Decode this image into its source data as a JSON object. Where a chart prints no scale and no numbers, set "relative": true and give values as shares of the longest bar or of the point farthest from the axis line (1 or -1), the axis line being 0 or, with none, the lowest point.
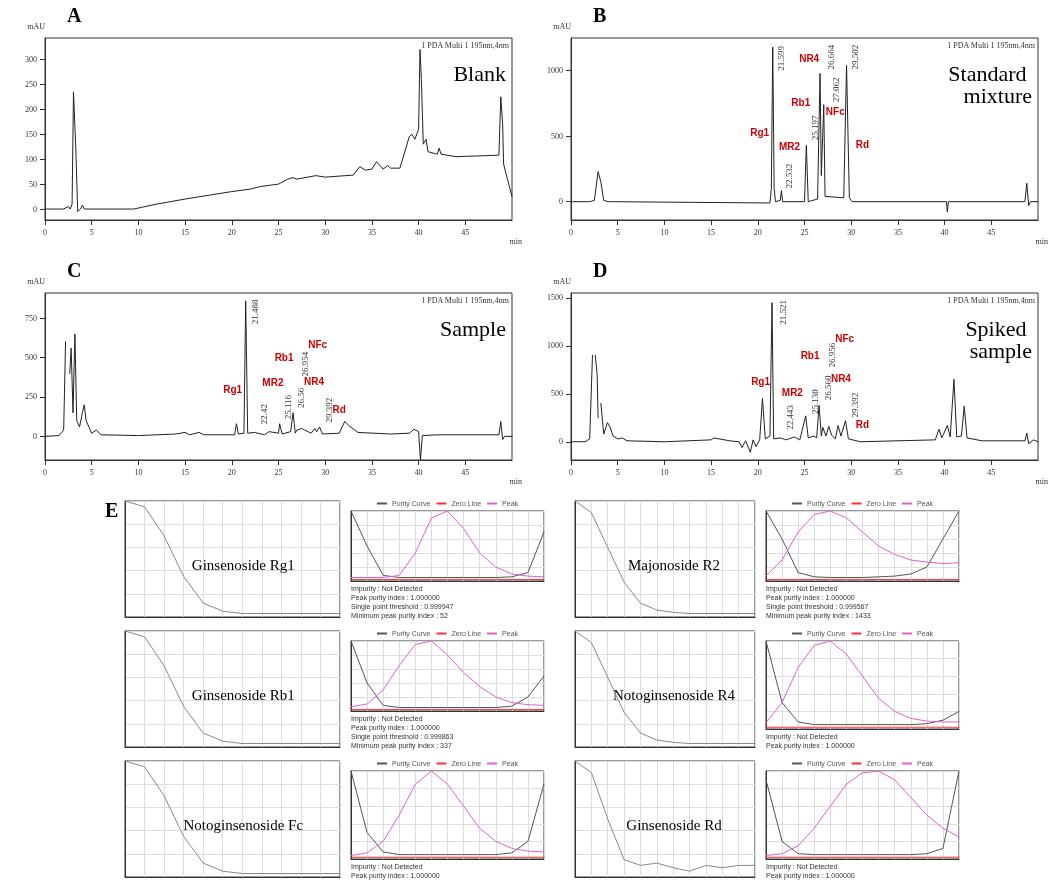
{
  "chart_data": [
    {
      "type": "line",
      "title": "A",
      "xlabel": "min",
      "ylabel": "mAU",
      "grid": false,
      "xlim": [
        0,
        50
      ],
      "xticks": [
        0,
        5,
        10,
        15,
        20,
        25,
        30,
        35,
        40,
        45
      ],
      "ylim": [
        -22,
        343
      ],
      "yticks": [
        0,
        50,
        100,
        150,
        200,
        250,
        300
      ],
      "x": [
        0,
        2,
        2.5,
        2.7,
        2.9,
        3.05,
        3.3,
        3.5,
        3.8,
        4,
        4.2,
        9.5,
        12,
        15,
        20,
        22,
        23,
        25,
        26,
        26.5,
        27,
        29,
        30,
        33,
        33.7,
        34.3,
        35,
        35.5,
        36.2,
        36.7,
        37,
        38,
        39,
        39.3,
        39.6,
        40,
        40.15,
        40.3,
        40.5,
        40.8,
        41,
        42,
        42.2,
        42.4,
        44,
        48.6,
        48.8,
        49,
        49.1,
        50
      ],
      "series": [
        {
          "color": "#222222",
          "values": [
            0,
            0,
            5,
            0,
            10,
            235,
            120,
            -5,
            0,
            8,
            0,
            0,
            10,
            20,
            35,
            40,
            45,
            50,
            60,
            63,
            60,
            67,
            64,
            68,
            85,
            78,
            80,
            95,
            80,
            87,
            82,
            82,
            145,
            150,
            140,
            160,
            320,
            260,
            130,
            140,
            115,
            110,
            122,
            110,
            105,
            108,
            225,
            170,
            90,
            25
          ]
        }
      ],
      "annotations": [
        "1 PDA Multi 1 195nm,4nm",
        "Blank"
      ]
    },
    {
      "type": "line",
      "title": "B",
      "xlabel": "min",
      "ylabel": "mAU",
      "grid": false,
      "xlim": [
        0,
        50
      ],
      "xticks": [
        0,
        5,
        10,
        15,
        20,
        25,
        30,
        35,
        40,
        45
      ],
      "ylim": [
        -140,
        1250
      ],
      "yticks": [
        0,
        500,
        1000
      ],
      "x": [
        0,
        2,
        2.5,
        2.9,
        3.2,
        3.5,
        4,
        21.3,
        21.45,
        21.599,
        21.75,
        21.9,
        22.4,
        22.532,
        22.65,
        25,
        25.197,
        25.4,
        26.4,
        26.664,
        26.8,
        27.062,
        27.2,
        29.2,
        29.502,
        29.8,
        30.1,
        40.2,
        40.3,
        40.4,
        48.6,
        48.8,
        49,
        49.2,
        50
      ],
      "series": [
        {
          "color": "#222222",
          "values": [
            0,
            0,
            10,
            230,
            150,
            10,
            0,
            -10,
            100,
            1180,
            100,
            0,
            10,
            85,
            0,
            0,
            430,
            0,
            20,
            980,
            200,
            740,
            40,
            30,
            1040,
            30,
            0,
            0,
            -80,
            0,
            0,
            140,
            -30,
            0,
            0
          ]
        }
      ],
      "annotations": [
        "1 PDA Multi 1 195nm,4nm",
        "Standard mixture",
        "Rg1",
        "MR2",
        "Rb1",
        "NR4",
        "NFc",
        "Rd",
        "21.599",
        "22.532",
        "25.197",
        "26.664",
        "27.062",
        "29.502"
      ]
    },
    {
      "type": "line",
      "title": "C",
      "xlabel": "min",
      "ylabel": "mAU",
      "grid": false,
      "xlim": [
        0,
        50
      ],
      "xticks": [
        0,
        5,
        10,
        15,
        20,
        25,
        30,
        35,
        40,
        45
      ],
      "ylim": [
        -150,
        910
      ],
      "yticks": [
        0,
        250,
        500,
        750
      ],
      "x": [
        0,
        1.5,
        2,
        2.2,
        2.35,
        2.5,
        2.65,
        2.8,
        3.0,
        3.2,
        3.4,
        3.7,
        4.0,
        4.2,
        4.4,
        5,
        5.5,
        6,
        10,
        14,
        15,
        15.5,
        16.5,
        17,
        20.3,
        20.5,
        20.7,
        21.3,
        21.488,
        21.7,
        22.42,
        23.5,
        24,
        25,
        25.116,
        25.4,
        26.3,
        26.56,
        26.8,
        26.954,
        27.5,
        27.8,
        28.5,
        28.9,
        29.1,
        29.392,
        29.7,
        31.5,
        32.1,
        32.5,
        33.5,
        37,
        39,
        39.5,
        40,
        40.2,
        40.4,
        42,
        48.6,
        48.8,
        49,
        49.2,
        50
      ],
      "series": [
        {
          "color": "#222222",
          "values": [
            0,
            5,
            40,
            600,
            null,
            null,
            400,
            560,
            150,
            650,
            100,
            60,
            150,
            200,
            100,
            20,
            40,
            10,
            5,
            15,
            25,
            10,
            25,
            10,
            10,
            80,
            15,
            20,
            860,
            20,
            25,
            10,
            30,
            20,
            80,
            15,
            30,
            150,
            20,
            40,
            50,
            40,
            20,
            50,
            30,
            60,
            15,
            20,
            95,
            70,
            25,
            15,
            20,
            45,
            30,
            -150,
            5,
            10,
            10,
            95,
            -20,
            0,
            0
          ]
        }
      ],
      "annotations": [
        "1 PDA Multi 1 195nm,4nm",
        "Sample",
        "Rg1",
        "MR2",
        "Rb1",
        "NR4",
        "NFc",
        "Rd",
        "21.488",
        "22.42",
        "25.116",
        "26.56",
        "26.954",
        "29.392"
      ]
    },
    {
      "type": "line",
      "title": "D",
      "xlabel": "min",
      "ylabel": "mAU",
      "grid": false,
      "xlim": [
        0,
        50
      ],
      "xticks": [
        0,
        5,
        10,
        15,
        20,
        25,
        30,
        35,
        40,
        45
      ],
      "ylim": [
        -190,
        1550
      ],
      "yticks": [
        0,
        500,
        1000,
        1500
      ],
      "x": [
        0,
        1.5,
        2.0,
        2.3,
        2.4,
        2.6,
        2.8,
        2.9,
        3.05,
        3.2,
        3.5,
        3.9,
        4.2,
        4.5,
        5,
        5.5,
        6,
        10,
        15,
        15.3,
        17,
        18,
        18.3,
        18.7,
        19.2,
        19.5,
        19.8,
        20.2,
        20.5,
        20.8,
        21.3,
        21.521,
        21.7,
        22.443,
        23,
        23.9,
        24.5,
        25.13,
        25.4,
        26,
        26.3,
        26.56,
        26.8,
        26.956,
        27.3,
        27.6,
        27.9,
        28.3,
        28.6,
        28.9,
        29.392,
        29.7,
        31,
        39,
        39.4,
        39.7,
        40.3,
        40.6,
        41,
        41.3,
        41.8,
        42.1,
        42.4,
        44,
        48.6,
        48.8,
        49,
        49.5,
        50
      ],
      "series": [
        {
          "color": "#222222",
          "values": [
            0,
            0,
            30,
            900,
            null,
            900,
            700,
            250,
            null,
            400,
            80,
            200,
            150,
            60,
            30,
            40,
            10,
            0,
            20,
            40,
            10,
            0,
            -60,
            10,
            -110,
            20,
            -50,
            20,
            450,
            30,
            60,
            1450,
            30,
            40,
            20,
            50,
            20,
            270,
            40,
            60,
            40,
            380,
            60,
            150,
            60,
            160,
            70,
            30,
            170,
            60,
            220,
            30,
            0,
            20,
            130,
            40,
            170,
            50,
            650,
            50,
            60,
            370,
            40,
            10,
            10,
            90,
            -20,
            20,
            0
          ]
        }
      ],
      "annotations": [
        "1 PDA Multi 1 195nm,4nm",
        "Spiked sample",
        "Rg1",
        "MR2",
        "Rb1",
        "NR4",
        "NFc",
        "Rd",
        "21.521",
        "22.443",
        "25.130",
        "26.560",
        "26.956",
        "29.392"
      ]
    },
    {
      "type": "line",
      "title": "E",
      "relative": true,
      "tick_labels": false,
      "grid": true,
      "categories": [
        null,
        null,
        null,
        null,
        null,
        null,
        null,
        null,
        null,
        null,
        null,
        null
      ],
      "series": [
        {
          "color": "#888888",
          "values": [
            1,
            0.95,
            0.7,
            0.35,
            0.12,
            0.05,
            0.03,
            0.03,
            0.03,
            0.03,
            0.03,
            0.03
          ]
        }
      ],
      "annotations": [
        "Ginsenoside Rg1"
      ]
    },
    {
      "type": "line",
      "relative": true,
      "tick_labels": false,
      "grid": true,
      "legend": "top",
      "categories": [
        null,
        null,
        null,
        null,
        null,
        null,
        null,
        null,
        null,
        null,
        null,
        null,
        null
      ],
      "series": [
        {
          "name": "Purity Curve",
          "color": "#555555",
          "values": [
            1,
            0.5,
            0.08,
            0.05,
            0.05,
            0.05,
            0.05,
            0.05,
            0.05,
            0.05,
            0.06,
            0.12,
            0.7
          ]
        },
        {
          "name": "Zero Line",
          "color": "#ff3030",
          "values": [
            0.02,
            0.02,
            0.02,
            0.02,
            0.02,
            0.02,
            0.02,
            0.02,
            0.02,
            0.02,
            0.02,
            0.02,
            0.02
          ]
        },
        {
          "name": "Peak",
          "color": "#e060d0",
          "values": [
            0.05,
            0.05,
            0.05,
            0.08,
            0.4,
            0.9,
            1,
            0.75,
            0.4,
            0.2,
            0.1,
            0.07,
            0.06
          ]
        }
      ],
      "annotations": [
        "Impurity : Not Detected",
        "Peak purity index : 1.000000",
        "Single point threshold : 0.999947",
        "Minimum peak purity index : 52"
      ]
    },
    {
      "type": "line",
      "relative": true,
      "tick_labels": false,
      "grid": true,
      "categories": [
        null,
        null,
        null,
        null,
        null,
        null,
        null,
        null,
        null,
        null,
        null,
        null
      ],
      "series": [
        {
          "color": "#888888",
          "values": [
            1,
            0.9,
            0.6,
            0.3,
            0.12,
            0.06,
            0.04,
            0.03,
            0.03,
            0.03,
            0.03,
            0.03
          ]
        }
      ],
      "annotations": [
        "Majonoside R2"
      ]
    },
    {
      "type": "line",
      "relative": true,
      "tick_labels": false,
      "grid": true,
      "legend": "top",
      "categories": [
        null,
        null,
        null,
        null,
        null,
        null,
        null,
        null,
        null,
        null,
        null,
        null,
        null
      ],
      "series": [
        {
          "name": "Purity Curve",
          "color": "#555555",
          "values": [
            1,
            0.6,
            0.12,
            0.06,
            0.05,
            0.05,
            0.05,
            0.06,
            0.07,
            0.1,
            0.2,
            0.6,
            1
          ]
        },
        {
          "name": "Zero Line",
          "color": "#ff3030",
          "values": [
            0.02,
            0.02,
            0.02,
            0.02,
            0.02,
            0.02,
            0.02,
            0.02,
            0.02,
            0.02,
            0.02,
            0.02,
            0.02
          ]
        },
        {
          "name": "Peak",
          "color": "#e060d0",
          "values": [
            0.07,
            0.3,
            0.7,
            0.95,
            1,
            0.9,
            0.7,
            0.5,
            0.38,
            0.3,
            0.27,
            0.25,
            0.26
          ]
        }
      ],
      "annotations": [
        "Impurity : Not Detected",
        "Peak purity index : 1.000000",
        "Single point threshold : 0.999567",
        "Minimum peak purity index : 1433"
      ]
    },
    {
      "type": "line",
      "relative": true,
      "tick_labels": false,
      "grid": true,
      "categories": [
        null,
        null,
        null,
        null,
        null,
        null,
        null,
        null,
        null,
        null,
        null,
        null
      ],
      "series": [
        {
          "color": "#888888",
          "values": [
            1,
            0.95,
            0.7,
            0.35,
            0.12,
            0.05,
            0.03,
            0.03,
            0.03,
            0.03,
            0.03,
            0.03
          ]
        }
      ],
      "annotations": [
        "Ginsenoside Rb1"
      ]
    },
    {
      "type": "line",
      "relative": true,
      "tick_labels": false,
      "grid": true,
      "legend": "top",
      "categories": [
        null,
        null,
        null,
        null,
        null,
        null,
        null,
        null,
        null,
        null,
        null,
        null,
        null
      ],
      "series": [
        {
          "name": "Purity Curve",
          "color": "#555555",
          "values": [
            1,
            0.4,
            0.08,
            0.05,
            0.05,
            0.05,
            0.05,
            0.05,
            0.05,
            0.05,
            0.07,
            0.2,
            0.5
          ]
        },
        {
          "name": "Zero Line",
          "color": "#ff3030",
          "values": [
            0.02,
            0.02,
            0.02,
            0.02,
            0.02,
            0.02,
            0.02,
            0.02,
            0.02,
            0.02,
            0.02,
            0.02,
            0.02
          ]
        },
        {
          "name": "Peak",
          "color": "#e060d0",
          "values": [
            0.06,
            0.1,
            0.3,
            0.65,
            0.95,
            1,
            0.8,
            0.55,
            0.35,
            0.2,
            0.12,
            0.09,
            0.08
          ]
        }
      ],
      "annotations": [
        "Impurity : Not Detected",
        "Peak purity index : 1.000000",
        "Single point threshold : 0.999863",
        "Minimum peak purity index : 337"
      ]
    },
    {
      "type": "line",
      "relative": true,
      "tick_labels": false,
      "grid": true,
      "categories": [
        null,
        null,
        null,
        null,
        null,
        null,
        null,
        null,
        null,
        null,
        null,
        null
      ],
      "series": [
        {
          "color": "#888888",
          "values": [
            1,
            0.9,
            0.6,
            0.3,
            0.12,
            0.06,
            0.04,
            0.03,
            0.03,
            0.03,
            0.03,
            0.03
          ]
        }
      ],
      "annotations": [
        "Notoginsenoside R4"
      ]
    },
    {
      "type": "line",
      "relative": true,
      "tick_labels": false,
      "grid": true,
      "legend": "top",
      "categories": [
        null,
        null,
        null,
        null,
        null,
        null,
        null,
        null,
        null,
        null,
        null,
        null,
        null
      ],
      "series": [
        {
          "name": "Purity Curve",
          "color": "#555555",
          "values": [
            1,
            0.3,
            0.08,
            0.05,
            0.05,
            0.05,
            0.05,
            0.05,
            0.05,
            0.05,
            0.06,
            0.1,
            0.2
          ]
        },
        {
          "name": "Zero Line",
          "color": "#ff3030",
          "values": [
            0.02,
            0.02,
            0.02,
            0.02,
            0.02,
            0.02,
            0.02,
            0.02,
            0.02,
            0.02,
            0.02,
            0.02,
            0.02
          ]
        },
        {
          "name": "Peak",
          "color": "#e060d0",
          "values": [
            0.07,
            0.3,
            0.7,
            0.95,
            1,
            0.85,
            0.6,
            0.35,
            0.2,
            0.12,
            0.09,
            0.08,
            0.08
          ]
        }
      ],
      "annotations": [
        "Impurity : Not Detected",
        "Peak purity index : 1.000000"
      ]
    },
    {
      "type": "line",
      "relative": true,
      "tick_labels": false,
      "grid": true,
      "categories": [
        null,
        null,
        null,
        null,
        null,
        null,
        null,
        null,
        null,
        null,
        null,
        null
      ],
      "series": [
        {
          "color": "#888888",
          "values": [
            1,
            0.95,
            0.7,
            0.35,
            0.12,
            0.05,
            0.03,
            0.03,
            0.03,
            0.03,
            0.03,
            0.03
          ]
        }
      ],
      "annotations": [
        "Notoginsenoside Fc"
      ]
    },
    {
      "type": "line",
      "relative": true,
      "tick_labels": false,
      "grid": true,
      "legend": "top",
      "categories": [
        null,
        null,
        null,
        null,
        null,
        null,
        null,
        null,
        null,
        null,
        null,
        null,
        null
      ],
      "series": [
        {
          "name": "Purity Curve",
          "color": "#555555",
          "values": [
            1,
            0.3,
            0.08,
            0.05,
            0.05,
            0.05,
            0.05,
            0.05,
            0.05,
            0.05,
            0.07,
            0.2,
            0.85
          ]
        },
        {
          "name": "Zero Line",
          "color": "#ff3030",
          "values": [
            0.02,
            0.02,
            0.02,
            0.02,
            0.02,
            0.02,
            0.02,
            0.02,
            0.02,
            0.02,
            0.02,
            0.02,
            0.02
          ]
        },
        {
          "name": "Peak",
          "color": "#e060d0",
          "values": [
            0.04,
            0.07,
            0.2,
            0.5,
            0.85,
            1,
            0.85,
            0.6,
            0.35,
            0.2,
            0.12,
            0.09,
            0.08
          ]
        }
      ],
      "annotations": [
        "Impurity : Not Detected",
        "Peak purity index : 1.000000"
      ]
    },
    {
      "type": "line",
      "relative": true,
      "tick_labels": false,
      "grid": true,
      "categories": [
        null,
        null,
        null,
        null,
        null,
        null,
        null,
        null,
        null,
        null,
        null,
        null
      ],
      "series": [
        {
          "color": "#888888",
          "values": [
            1,
            0.9,
            0.5,
            0.15,
            0.1,
            0.12,
            0.08,
            0.05,
            0.1,
            0.08,
            0.1,
            0.1
          ]
        }
      ],
      "annotations": [
        "Ginsenoside Rd"
      ]
    },
    {
      "type": "line",
      "relative": true,
      "tick_labels": false,
      "grid": true,
      "legend": "top",
      "categories": [
        null,
        null,
        null,
        null,
        null,
        null,
        null,
        null,
        null,
        null,
        null,
        null,
        null
      ],
      "series": [
        {
          "name": "Purity Curve",
          "color": "#555555",
          "values": [
            0.9,
            0.2,
            0.06,
            0.05,
            0.05,
            0.05,
            0.05,
            0.05,
            0.05,
            0.05,
            0.06,
            0.12,
            1
          ]
        },
        {
          "name": "Zero Line",
          "color": "#ff3030",
          "values": [
            0.02,
            0.02,
            0.02,
            0.02,
            0.02,
            0.02,
            0.02,
            0.02,
            0.02,
            0.02,
            0.02,
            0.02,
            0.02
          ]
        },
        {
          "name": "Peak",
          "color": "#e060d0",
          "values": [
            0.04,
            0.06,
            0.15,
            0.35,
            0.6,
            0.85,
            0.98,
            1,
            0.9,
            0.7,
            0.5,
            0.35,
            0.25
          ]
        }
      ],
      "annotations": [
        "Impurity : Not Detected",
        "Peak purity index : 1.000000"
      ]
    }
  ]
}
